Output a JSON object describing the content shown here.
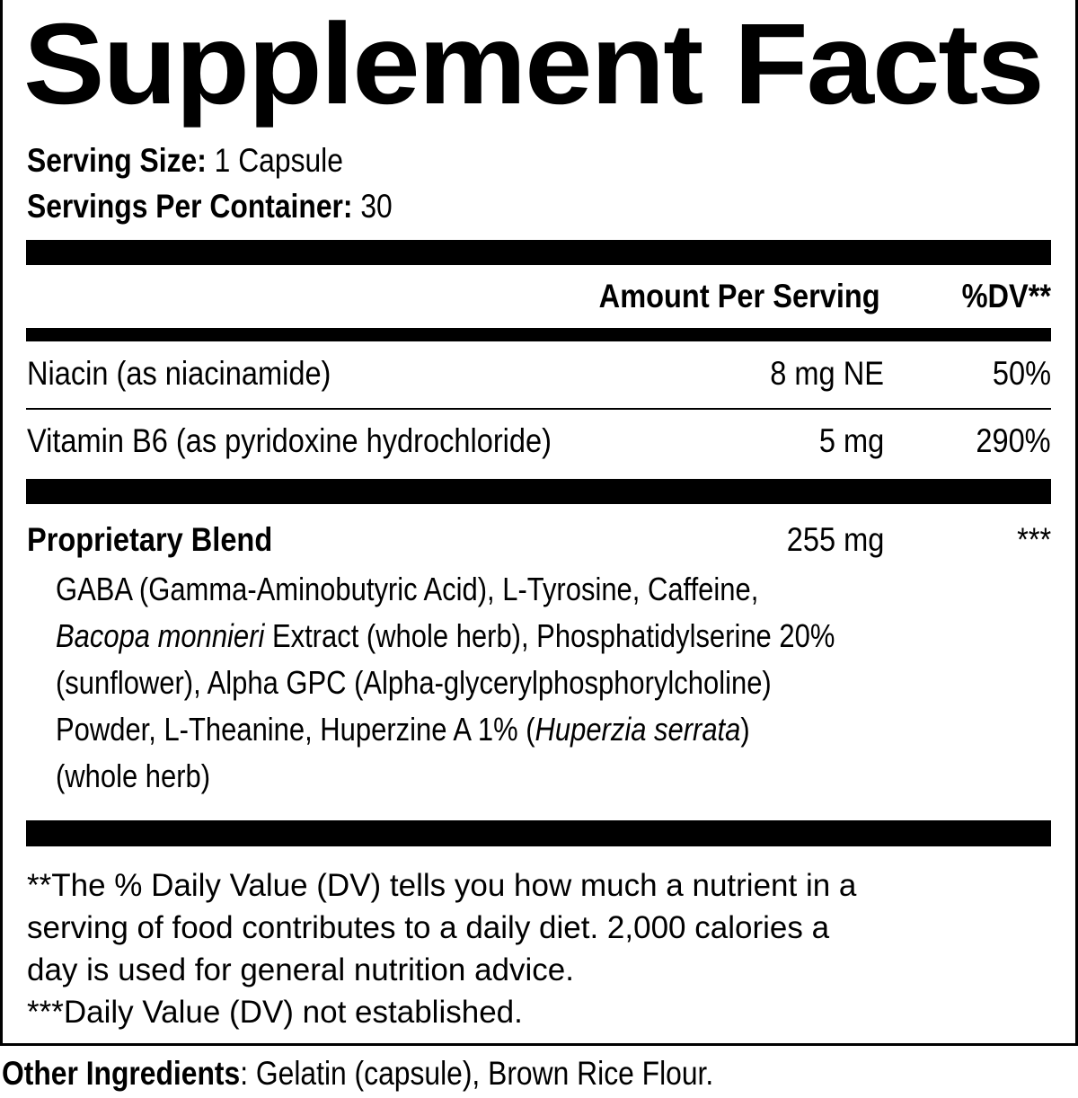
{
  "title": "Supplement Facts",
  "serving": {
    "size_label": "Serving Size:",
    "size_value": " 1 Capsule",
    "per_container_label": "Servings Per Container:",
    "per_container_value": " 30"
  },
  "header": {
    "amount": "Amount Per Serving",
    "dv": "%DV**"
  },
  "nutrients": [
    {
      "name": "Niacin (as niacinamide)",
      "amount": "8 mg NE",
      "dv": "50%"
    },
    {
      "name": "Vitamin B6 (as pyridoxine hydrochloride)",
      "amount": "5 mg",
      "dv": "290%"
    }
  ],
  "blend": {
    "name": "Proprietary Blend",
    "amount": "255 mg",
    "dv": "***",
    "lines": [
      [
        "GABA (Gamma-Aminobutyric Acid), L-Tyrosine, Caffeine,"
      ],
      [
        "Bacopa monnieri",
        " Extract (whole herb), Phosphatidylserine 20%"
      ],
      [
        "(sunflower), Alpha GPC (Alpha-glycerylphosphorylcholine)"
      ],
      [
        "Powder, L-Theanine, Huperzine A 1% (",
        "Huperzia serrata",
        ")"
      ],
      [
        "(whole herb)"
      ]
    ]
  },
  "footnotes": [
    "**The % Daily Value (DV) tells you how much a nutrient in a",
    "serving of food contributes to a daily diet. 2,000 calories a",
    "day is used for general nutrition advice.",
    "***Daily Value (DV) not established."
  ],
  "other_ingredients": {
    "label": "Other Ingredients",
    "value": ": Gelatin (capsule), Brown Rice Flour."
  }
}
